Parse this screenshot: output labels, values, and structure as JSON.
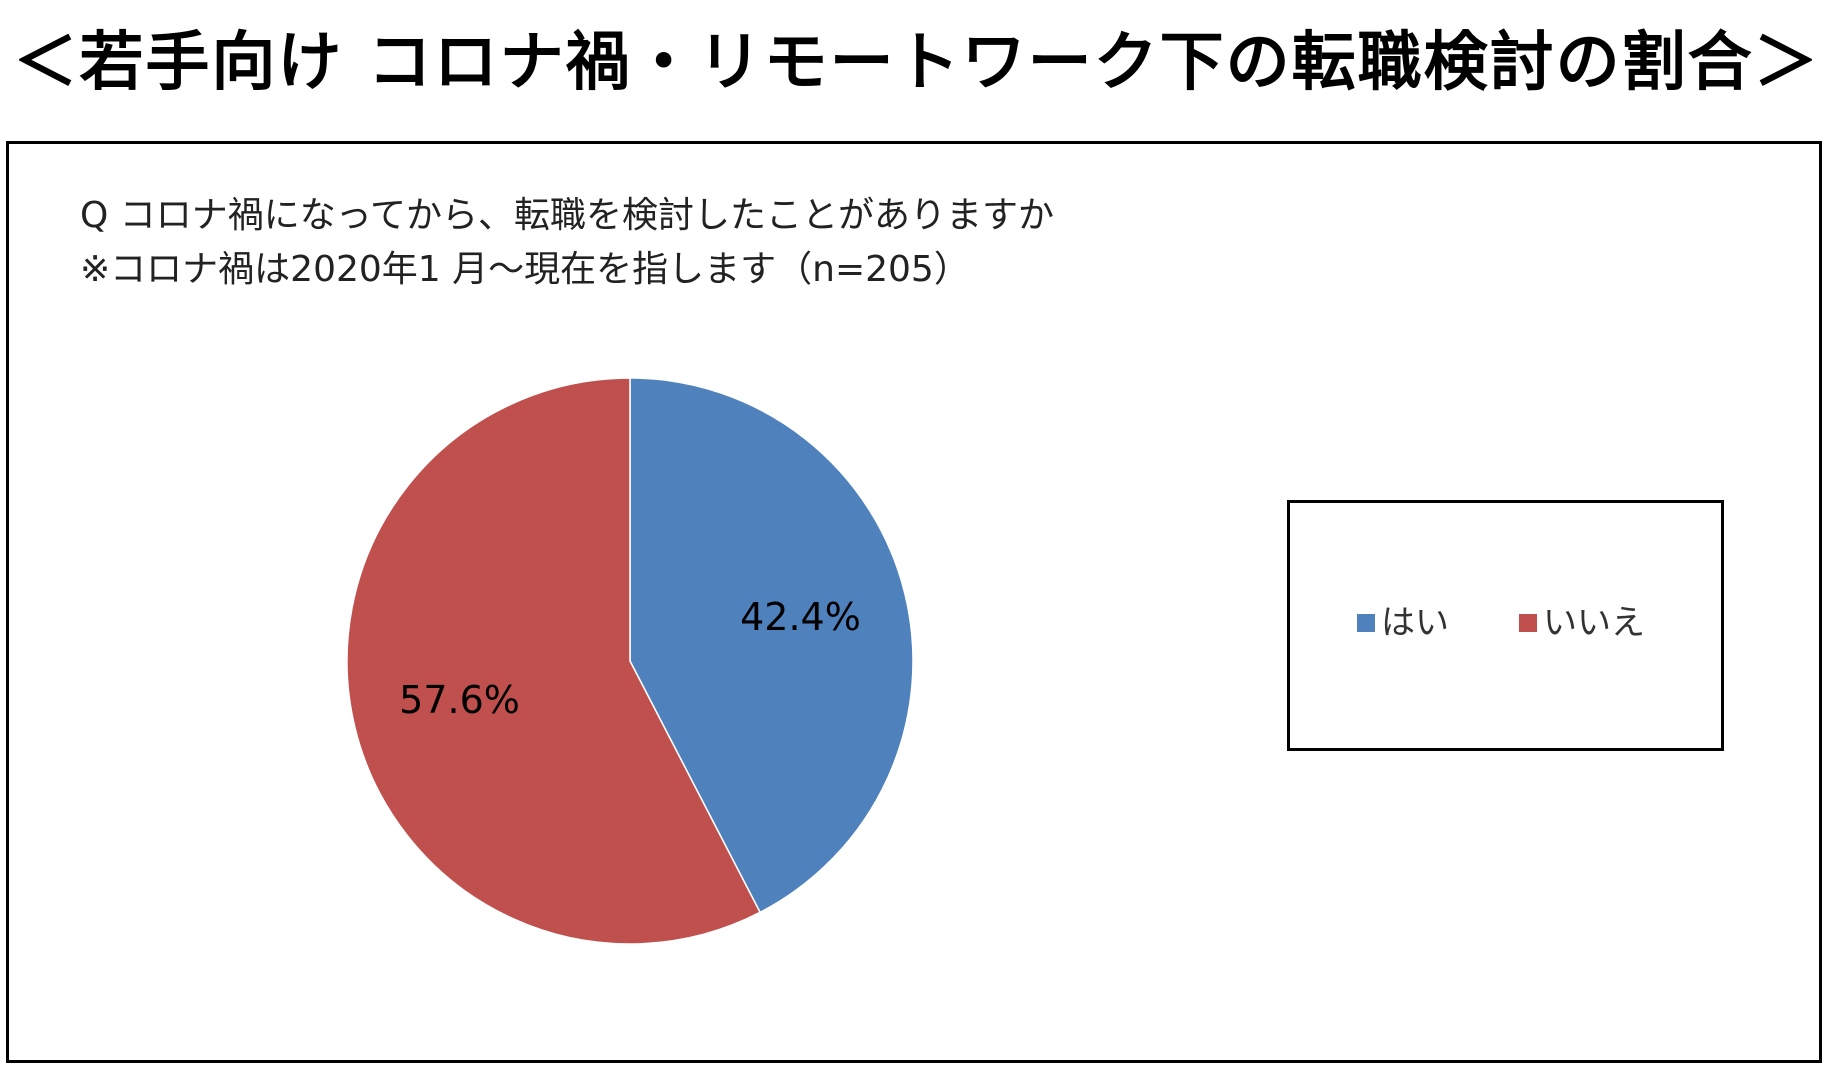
{
  "title": "＜若手向け コロナ禍・リモートワーク下の転職検討の割合＞",
  "question": {
    "line1": "Q コロナ禍になってから、転職を検討したことがありますか",
    "line2": "※コロナ禍は2020年1 月～現在を指します（n=205）"
  },
  "chart_data": {
    "type": "pie",
    "categories": [
      "はい",
      "いいえ"
    ],
    "values": [
      42.4,
      57.6
    ],
    "data_labels": [
      "42.4%",
      "57.6%"
    ],
    "colors": [
      "#4F81BD",
      "#C0504D"
    ],
    "legend_position": "right",
    "start_angle": "12 o'clock, clockwise"
  },
  "legend": {
    "items": [
      {
        "label": "はい",
        "color": "#4F81BD"
      },
      {
        "label": "いいえ",
        "color": "#C0504D"
      }
    ]
  }
}
